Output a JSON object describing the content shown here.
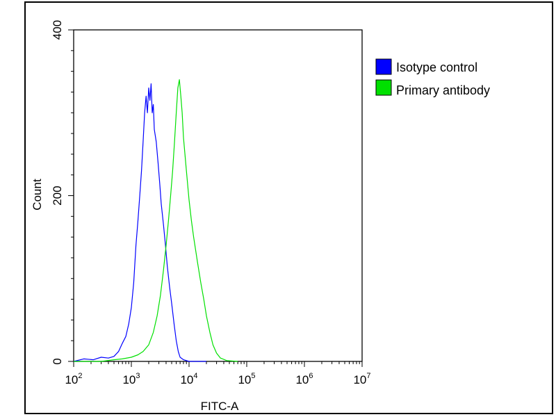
{
  "chart_data": {
    "type": "line",
    "title": "",
    "xlabel": "FITC-A",
    "ylabel": "Count",
    "x_scale": "log",
    "xlim": [
      100,
      10000000
    ],
    "ylim": [
      0,
      400
    ],
    "x_ticks": [
      {
        "base": "10",
        "exp": "2",
        "value": 100
      },
      {
        "base": "10",
        "exp": "3",
        "value": 1000
      },
      {
        "base": "10",
        "exp": "4",
        "value": 10000
      },
      {
        "base": "10",
        "exp": "5",
        "value": 100000
      },
      {
        "base": "10",
        "exp": "6",
        "value": 1000000
      },
      {
        "base": "10",
        "exp": "7",
        "value": 10000000
      }
    ],
    "y_ticks": [
      {
        "label": "0",
        "value": 0
      },
      {
        "label": "200",
        "value": 200
      },
      {
        "label": "400",
        "value": 400
      }
    ],
    "grid": false,
    "legend_position": "right",
    "series": [
      {
        "name": "Isotype control",
        "color": "#0000ff",
        "x": [
          100,
          150,
          220,
          300,
          400,
          500,
          600,
          700,
          800,
          900,
          1000,
          1100,
          1200,
          1300,
          1400,
          1500,
          1600,
          1700,
          1800,
          1900,
          2000,
          2100,
          2200,
          2300,
          2400,
          2500,
          2700,
          2900,
          3100,
          3300,
          3600,
          3900,
          4200,
          4600,
          5000,
          5500,
          6000,
          6500,
          7000,
          8000,
          10000,
          20000
        ],
        "y": [
          0,
          3,
          2,
          5,
          4,
          6,
          12,
          22,
          30,
          45,
          65,
          95,
          140,
          170,
          200,
          230,
          265,
          300,
          320,
          300,
          330,
          315,
          335,
          300,
          310,
          280,
          265,
          240,
          215,
          190,
          165,
          140,
          115,
          90,
          70,
          45,
          25,
          12,
          5,
          2,
          0,
          0
        ]
      },
      {
        "name": "Primary antibody",
        "color": "#00e000",
        "x": [
          100,
          300,
          500,
          700,
          1000,
          1300,
          1600,
          2000,
          2400,
          2800,
          3200,
          3600,
          4000,
          4400,
          4800,
          5200,
          5600,
          6000,
          6400,
          6800,
          7200,
          7600,
          8000,
          9000,
          10000,
          11000,
          12000,
          14000,
          16000,
          18000,
          20000,
          23000,
          26000,
          30000,
          35000,
          45000,
          70000
        ],
        "y": [
          0,
          0,
          2,
          3,
          5,
          8,
          12,
          20,
          35,
          55,
          80,
          110,
          140,
          170,
          200,
          230,
          265,
          300,
          330,
          340,
          320,
          300,
          270,
          230,
          195,
          170,
          150,
          120,
          95,
          75,
          55,
          35,
          20,
          10,
          4,
          1,
          0
        ]
      }
    ]
  }
}
